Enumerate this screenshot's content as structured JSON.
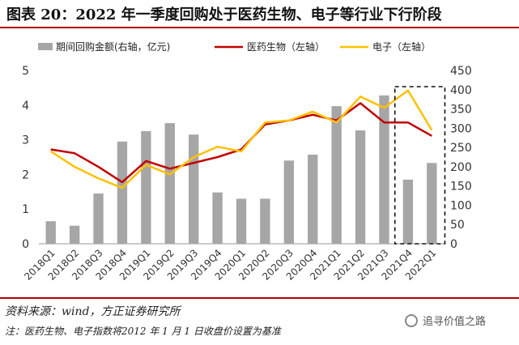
{
  "title": "图表 20：2022 年一季度回购处于医药生物、电子等行业下行阶段",
  "source": "资料来源：wind，方正证券研究所",
  "note": "注：医药生物、电子指数将2012 年 1 月 1 日收盘价设置为基准",
  "watermark": "追寻价值之路",
  "watermark_icon": "wechat-icon",
  "colors": {
    "bar": "#a6a6a6",
    "pharma": "#c00000",
    "electronics": "#ffc000",
    "rule": "#b30000"
  },
  "chart_data": {
    "type": "bar+line",
    "categories": [
      "2018Q1",
      "2018Q2",
      "2018Q3",
      "2018Q4",
      "2019Q1",
      "2019Q2",
      "2019Q3",
      "2019Q4",
      "2020Q1",
      "2020Q2",
      "2020Q3",
      "2020Q4",
      "2021Q1",
      "2021Q2",
      "2021Q3",
      "2021Q4",
      "2022Q1"
    ],
    "series": [
      {
        "name": "期间回购金额(右轴，亿元)",
        "type": "bar",
        "axis": "left",
        "values": [
          0.65,
          0.52,
          1.45,
          2.95,
          3.25,
          3.48,
          3.15,
          1.48,
          1.3,
          1.3,
          2.4,
          2.57,
          3.97,
          3.27,
          4.28,
          1.85,
          2.33
        ]
      },
      {
        "name": "医药生物（左轴）",
        "type": "line",
        "axis": "right",
        "values": [
          245,
          235,
          200,
          160,
          215,
          195,
          210,
          225,
          245,
          310,
          320,
          335,
          320,
          365,
          315,
          315,
          280
        ]
      },
      {
        "name": "电子（左轴）",
        "type": "line",
        "axis": "right",
        "values": [
          240,
          200,
          170,
          145,
          205,
          180,
          225,
          252,
          240,
          315,
          320,
          343,
          315,
          382,
          353,
          398,
          295
        ]
      }
    ],
    "y_left": {
      "min": 0,
      "max": 5,
      "ticks": [
        "0",
        "1",
        "2",
        "3",
        "4",
        "5"
      ]
    },
    "y_right": {
      "min": 0,
      "max": 450,
      "ticks": [
        "0",
        "50",
        "100",
        "150",
        "200",
        "250",
        "300",
        "350",
        "400",
        "450"
      ]
    },
    "highlight": [
      "2021Q4",
      "2022Q1"
    ]
  }
}
